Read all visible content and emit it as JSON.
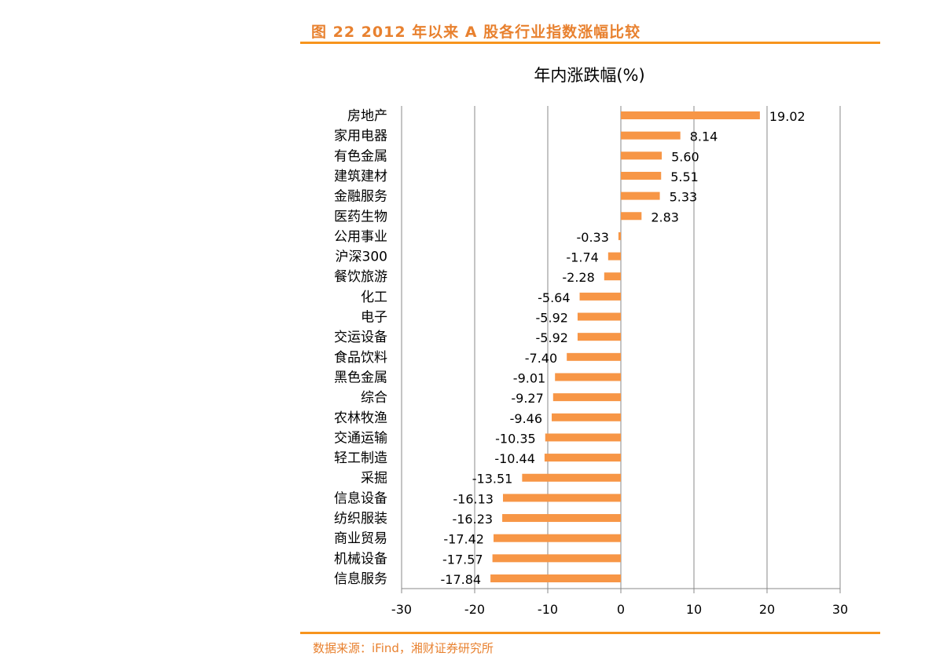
{
  "figure_title": "图 22 2012 年以来 A 股各行业指数涨幅比较",
  "source": "数据来源：iFind，湘财证券研究所",
  "chart_data": {
    "type": "bar",
    "orientation": "horizontal",
    "title": "年内涨跌幅(%)",
    "xlabel": "",
    "ylabel": "",
    "xlim": [
      -30,
      30
    ],
    "xticks": [
      -30,
      -20,
      -10,
      0,
      10,
      20,
      30
    ],
    "grid": "vertical",
    "legend": "none",
    "bar_color": "#F79646",
    "categories": [
      "房地产",
      "家用电器",
      "有色金属",
      "建筑建材",
      "金融服务",
      "医药生物",
      "公用事业",
      "沪深300",
      "餐饮旅游",
      "化工",
      "电子",
      "交运设备",
      "食品饮料",
      "黑色金属",
      "综合",
      "农林牧渔",
      "交通运输",
      "轻工制造",
      "采掘",
      "信息设备",
      "纺织服装",
      "商业贸易",
      "机械设备",
      "信息服务"
    ],
    "values": [
      19.02,
      8.14,
      5.6,
      5.51,
      5.33,
      2.83,
      -0.33,
      -1.74,
      -2.28,
      -5.64,
      -5.92,
      -5.92,
      -7.4,
      -9.01,
      -9.27,
      -9.46,
      -10.35,
      -10.44,
      -13.51,
      -16.13,
      -16.23,
      -17.42,
      -17.57,
      -17.84
    ]
  }
}
